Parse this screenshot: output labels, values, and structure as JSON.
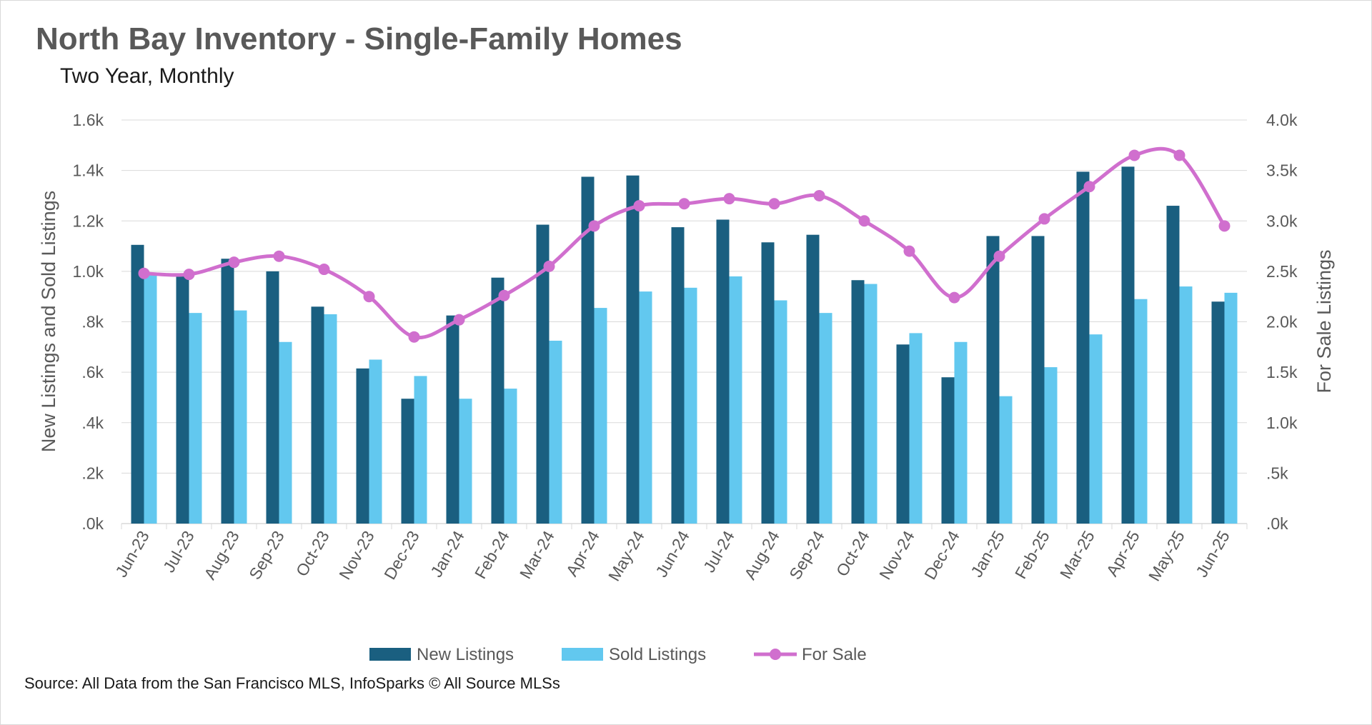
{
  "title": "North Bay Inventory - Single-Family Homes",
  "subtitle": "Two Year, Monthly",
  "source": "Source: All Data from the San Francisco MLS, InfoSparks © All Source MLSs",
  "colors": {
    "new": "#1a5f80",
    "sold": "#62c8ef",
    "forsale": "#d06fce",
    "grid": "#d9d9d9",
    "text": "#595959"
  },
  "chart_data": {
    "type": "bar",
    "title": "North Bay Inventory - Single-Family Homes",
    "categories": [
      "Jun-23",
      "Jul-23",
      "Aug-23",
      "Sep-23",
      "Oct-23",
      "Nov-23",
      "Dec-23",
      "Jan-24",
      "Feb-24",
      "Mar-24",
      "Apr-24",
      "May-24",
      "Jun-24",
      "Jul-24",
      "Aug-24",
      "Sep-24",
      "Oct-24",
      "Nov-24",
      "Dec-24",
      "Jan-25",
      "Feb-25",
      "Mar-25",
      "Apr-25",
      "May-25",
      "Jun-25"
    ],
    "series": [
      {
        "name": "New Listings",
        "type": "bar",
        "axis": "left",
        "values": [
          1105,
          980,
          1050,
          1000,
          860,
          615,
          495,
          825,
          975,
          1185,
          1375,
          1380,
          1175,
          1205,
          1115,
          1145,
          965,
          710,
          580,
          1140,
          1140,
          1395,
          1415,
          1260,
          880
        ]
      },
      {
        "name": "Sold Listings",
        "type": "bar",
        "axis": "left",
        "values": [
          990,
          835,
          845,
          720,
          830,
          650,
          585,
          495,
          535,
          725,
          855,
          920,
          935,
          980,
          885,
          835,
          950,
          755,
          720,
          505,
          620,
          750,
          890,
          940,
          915
        ]
      },
      {
        "name": "For Sale",
        "type": "line",
        "axis": "right",
        "values": [
          2480,
          2470,
          2590,
          2650,
          2520,
          2250,
          1850,
          2020,
          2260,
          2550,
          2950,
          3150,
          3170,
          3220,
          3170,
          3250,
          3000,
          2700,
          2240,
          2650,
          3020,
          3340,
          3650,
          3650,
          2950
        ]
      }
    ],
    "ylabel": "New Listings and Sold Listings",
    "y2label": "For Sale Listings",
    "ylim": [
      0,
      1600
    ],
    "y2lim": [
      0,
      4000
    ],
    "yticks": [
      ".0k",
      ".2k",
      ".4k",
      ".6k",
      ".8k",
      "1.0k",
      "1.2k",
      "1.4k",
      "1.6k"
    ],
    "y2ticks": [
      ".0k",
      ".5k",
      "1.0k",
      "1.5k",
      "2.0k",
      "2.5k",
      "3.0k",
      "3.5k",
      "4.0k"
    ],
    "legend": "bottom-center",
    "legend_entries": [
      "New Listings",
      "Sold Listings",
      "For Sale"
    ],
    "grid": true
  }
}
